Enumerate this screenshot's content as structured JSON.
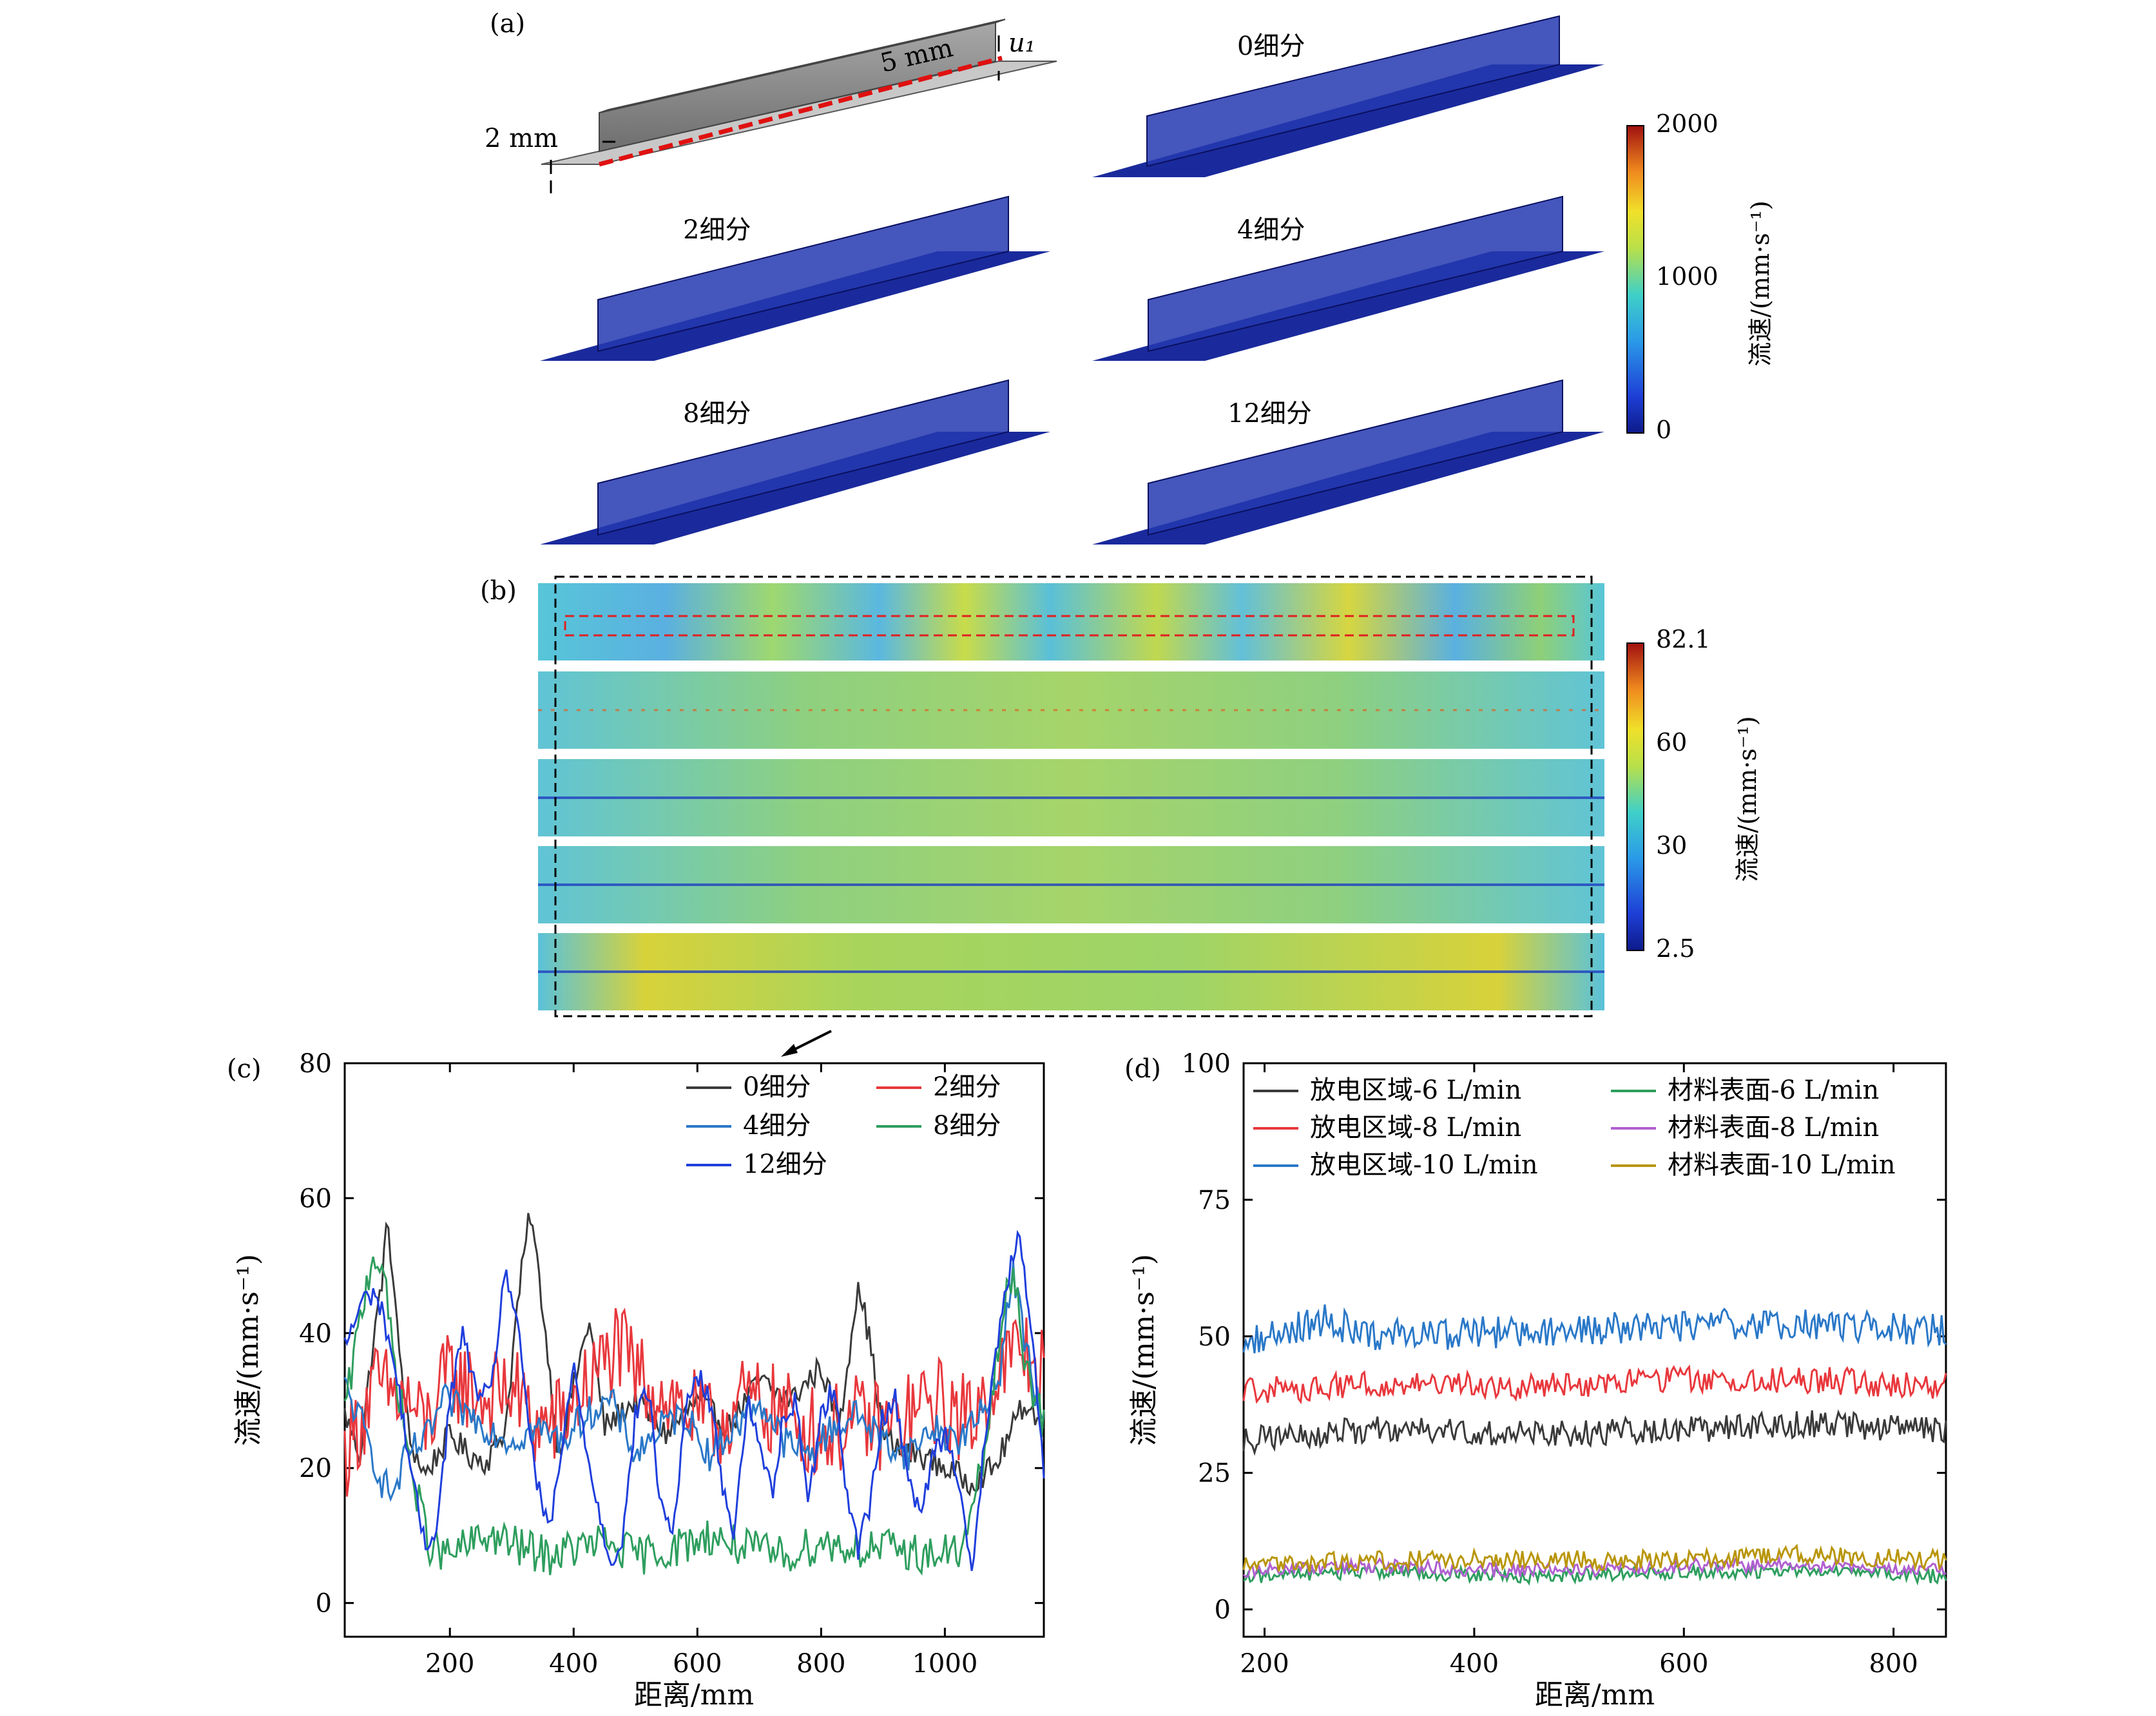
{
  "panels": {
    "a": {
      "label": "(a)",
      "schematic": {
        "dim_2mm": "2 mm",
        "dim_5mm": "5 mm",
        "u1": "u₁"
      },
      "titles": [
        "0细分",
        "2细分",
        "4细分",
        "8细分",
        "12细分"
      ],
      "colorbar": {
        "ticks": [
          "2000",
          "1000",
          "0"
        ],
        "label": "流速/(mm·s⁻¹)"
      }
    },
    "b": {
      "label": "(b)",
      "colorbar": {
        "ticks": [
          "82.1",
          "60",
          "30",
          "2.5"
        ],
        "label": "流速/(mm·s⁻¹)"
      }
    },
    "c": {
      "label": "(c)"
    },
    "d": {
      "label": "(d)"
    }
  },
  "chart_data": [
    {
      "type": "line",
      "panel": "c",
      "xlabel": "距离/mm",
      "ylabel": "流速/(mm·s⁻¹)",
      "xlim": [
        30,
        1160
      ],
      "ylim": [
        -5,
        80
      ],
      "xticks": [
        200,
        400,
        600,
        800,
        1000
      ],
      "yticks": [
        0,
        20,
        40,
        60,
        80
      ],
      "legend": "top-right",
      "series": [
        {
          "name": "0细分",
          "color": "#3a3a3a",
          "noise": 2,
          "x": [
            30,
            55,
            70,
            90,
            100,
            115,
            135,
            160,
            180,
            200,
            230,
            260,
            290,
            310,
            330,
            350,
            375,
            400,
            425,
            450,
            500,
            550,
            600,
            650,
            700,
            750,
            800,
            830,
            860,
            880,
            900,
            930,
            960,
            1000,
            1040,
            1080,
            1100,
            1130,
            1160
          ],
          "y": [
            28,
            22,
            34,
            48,
            57,
            40,
            24,
            19,
            22,
            25,
            22,
            21,
            26,
            45,
            58,
            44,
            22,
            32,
            42,
            26,
            30,
            25,
            30,
            26,
            33,
            30,
            35,
            26,
            48,
            38,
            25,
            22,
            22,
            20,
            18,
            20,
            24,
            30,
            26
          ]
        },
        {
          "name": "2细分",
          "color": "#e8383d",
          "noise": 7,
          "x": [
            30,
            80,
            130,
            160,
            200,
            260,
            300,
            340,
            380,
            420,
            470,
            500,
            560,
            620,
            680,
            740,
            800,
            860,
            920,
            980,
            1040,
            1080,
            1120,
            1160
          ],
          "y": [
            22,
            32,
            30,
            26,
            34,
            30,
            32,
            26,
            27,
            32,
            38,
            34,
            30,
            26,
            30,
            28,
            25,
            27,
            26,
            30,
            27,
            33,
            38,
            34
          ]
        },
        {
          "name": "4细分",
          "color": "#2a78c8",
          "noise": 2.5,
          "x": [
            30,
            60,
            90,
            110,
            130,
            160,
            190,
            230,
            260,
            300,
            340,
            380,
            420,
            460,
            500,
            540,
            580,
            620,
            660,
            700,
            740,
            780,
            820,
            860,
            900,
            940,
            980,
            1020,
            1060,
            1090,
            1110,
            1130,
            1160
          ],
          "y": [
            32,
            26,
            18,
            16,
            22,
            24,
            30,
            28,
            26,
            24,
            26,
            24,
            28,
            30,
            22,
            26,
            28,
            22,
            26,
            30,
            24,
            22,
            26,
            28,
            24,
            22,
            26,
            24,
            28,
            35,
            50,
            38,
            26
          ]
        },
        {
          "name": "8细分",
          "color": "#2e9e5e",
          "noise": 3,
          "x": [
            30,
            55,
            75,
            90,
            110,
            140,
            170,
            200,
            260,
            320,
            360,
            400,
            450,
            500,
            560,
            620,
            680,
            740,
            800,
            860,
            920,
            980,
            1030,
            1060,
            1090,
            1110,
            1130,
            1160
          ],
          "y": [
            28,
            42,
            52,
            50,
            36,
            18,
            8,
            7,
            10,
            8,
            7,
            8,
            9,
            7,
            8,
            10,
            8,
            7,
            9,
            8,
            8,
            7,
            8,
            20,
            40,
            50,
            36,
            26
          ]
        },
        {
          "name": "12细分",
          "color": "#1f3fdc",
          "noise": 1.8,
          "x": [
            30,
            60,
            80,
            100,
            120,
            140,
            160,
            180,
            200,
            220,
            240,
            265,
            290,
            310,
            340,
            360,
            380,
            400,
            430,
            460,
            480,
            500,
            520,
            540,
            560,
            580,
            600,
            620,
            640,
            660,
            680,
            700,
            720,
            740,
            760,
            780,
            800,
            820,
            840,
            860,
            880,
            900,
            920,
            940,
            960,
            980,
            1000,
            1020,
            1045,
            1060,
            1080,
            1100,
            1120,
            1140,
            1160
          ],
          "y": [
            38,
            45,
            46,
            40,
            30,
            18,
            8,
            12,
            30,
            40,
            32,
            30,
            50,
            40,
            18,
            10,
            22,
            35,
            18,
            6,
            10,
            28,
            32,
            15,
            10,
            28,
            34,
            30,
            18,
            10,
            30,
            24,
            16,
            28,
            30,
            15,
            28,
            32,
            18,
            8,
            15,
            28,
            30,
            20,
            12,
            22,
            25,
            20,
            4,
            20,
            35,
            48,
            54,
            40,
            20
          ]
        }
      ]
    },
    {
      "type": "line",
      "panel": "d",
      "xlabel": "距离/mm",
      "ylabel": "流速/(mm·s⁻¹)",
      "xlim": [
        180,
        850
      ],
      "ylim": [
        -5,
        100
      ],
      "xticks": [
        200,
        400,
        600,
        800
      ],
      "yticks": [
        0,
        25,
        50,
        75,
        100
      ],
      "legend": "top",
      "series": [
        {
          "name": "放电区域-6 L/min",
          "color": "#3a3a3a",
          "noise": 2.5,
          "x": [
            180,
            300,
            450,
            600,
            720,
            850
          ],
          "y": [
            31,
            33,
            32,
            33,
            34,
            33
          ]
        },
        {
          "name": "放电区域-8 L/min",
          "color": "#e8383d",
          "noise": 2.5,
          "x": [
            180,
            300,
            450,
            600,
            720,
            850
          ],
          "y": [
            40,
            41,
            41,
            42,
            42,
            41
          ]
        },
        {
          "name": "放电区域-10 L/min",
          "color": "#2a78c8",
          "noise": 3,
          "x": [
            180,
            260,
            300,
            450,
            600,
            720,
            850
          ],
          "y": [
            49,
            53,
            50,
            51,
            52,
            52,
            51
          ]
        },
        {
          "name": "材料表面-6 L/min",
          "color": "#2e9e5e",
          "noise": 1.3,
          "x": [
            180,
            300,
            450,
            600,
            720,
            850
          ],
          "y": [
            6,
            7,
            6,
            7,
            7,
            6
          ]
        },
        {
          "name": "材料表面-8 L/min",
          "color": "#b060d0",
          "noise": 1.3,
          "x": [
            180,
            300,
            450,
            600,
            720,
            850
          ],
          "y": [
            7,
            8,
            7,
            8,
            8,
            7
          ]
        },
        {
          "name": "材料表面-10 L/min",
          "color": "#b8960a",
          "noise": 1.8,
          "x": [
            180,
            300,
            450,
            600,
            720,
            850
          ],
          "y": [
            8,
            9,
            9,
            9,
            10,
            9
          ]
        }
      ]
    }
  ]
}
